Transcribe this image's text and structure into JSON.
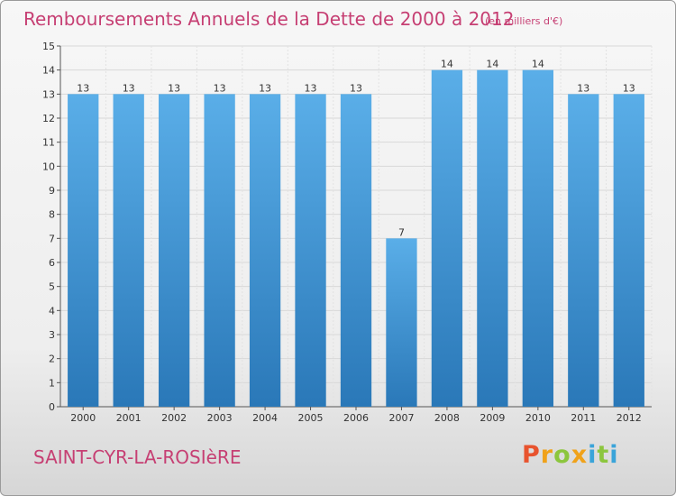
{
  "chart_data": {
    "type": "bar",
    "title": "Remboursements Annuels de la Dette de 2000 à 2012",
    "subtitle": "(en milliers d'€)",
    "categories": [
      "2000",
      "2001",
      "2002",
      "2003",
      "2004",
      "2005",
      "2006",
      "2007",
      "2008",
      "2009",
      "2010",
      "2011",
      "2012"
    ],
    "values": [
      13,
      13,
      13,
      13,
      13,
      13,
      13,
      7,
      14,
      14,
      14,
      13,
      13
    ],
    "ylim": [
      0,
      15
    ],
    "yticks": [
      0,
      1,
      2,
      3,
      4,
      5,
      6,
      7,
      8,
      9,
      10,
      11,
      12,
      13,
      14,
      15
    ],
    "grid": true,
    "bar_color_top": "#5aaee8",
    "bar_color_bottom": "#2a78b8"
  },
  "commune": "SAINT-CYR-LA-ROSIèRE",
  "logo": {
    "text": "Proxiti",
    "colors": [
      "#e8532e",
      "#f0a21a",
      "#8cc63e",
      "#3aa4d9"
    ]
  }
}
